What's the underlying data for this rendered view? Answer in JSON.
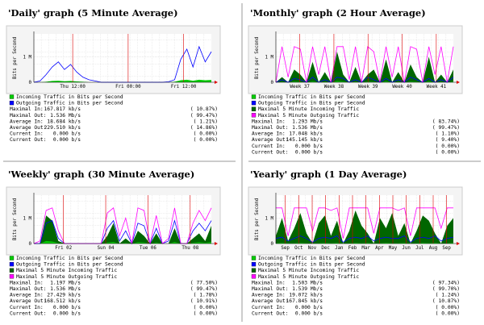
{
  "panels": [
    {
      "title": "'Daily' graph (5 Minute Average)",
      "y_axis_label": "Bits per Second",
      "ylim": [
        0,
        1.9
      ],
      "yticks": [
        0,
        {
          "value": 1,
          "label": "1 M"
        }
      ],
      "x_labels": [
        "Thu 12:00",
        "Fri 00:00",
        "Fri 12:00"
      ],
      "series": [
        {
          "name": "Incoming Traffic in Bits per Second",
          "color": "#00cc00",
          "style": "area",
          "values": [
            0,
            0,
            0.02,
            0.05,
            0.06,
            0.04,
            0.05,
            0.03,
            0.02,
            0,
            0,
            0,
            0,
            0,
            0,
            0,
            0,
            0,
            0,
            0,
            0,
            0,
            0,
            0.02,
            0.08,
            0.1,
            0.06,
            0.1,
            0.08,
            0.09
          ]
        },
        {
          "name": "Outgoing Traffic in Bits per Second",
          "color": "#0000ff",
          "style": "line",
          "values": [
            0,
            0.05,
            0.3,
            0.6,
            0.8,
            0.5,
            0.7,
            0.4,
            0.2,
            0.1,
            0.05,
            0,
            0,
            0,
            0,
            0,
            0,
            0,
            0,
            0,
            0,
            0,
            0.02,
            0.1,
            0.9,
            1.3,
            0.6,
            1.4,
            0.8,
            1.2
          ]
        }
      ],
      "stats": [
        [
          "Maximal In:",
          "167.817 kb/s",
          "( 10.87%)"
        ],
        [
          "Maximal Out:",
          "1.536 Mb/s",
          "( 99.47%)"
        ],
        [
          "Average In:",
          "18.684 kb/s",
          "( 1.21%)"
        ],
        [
          "Average Out:",
          "229.510 kb/s",
          "( 14.86%)"
        ],
        [
          "Current In:",
          "0.000 b/s",
          "( 0.00%)"
        ],
        [
          "Current Out:",
          "0.000 b/s",
          "( 0.00%)"
        ]
      ]
    },
    {
      "title": "'Monthly' graph (2 Hour Average)",
      "y_axis_label": "Bits per Second",
      "ylim": [
        0,
        1.9
      ],
      "yticks": [
        0,
        {
          "value": 1,
          "label": "1 M"
        }
      ],
      "x_labels": [
        "Week 37",
        "Week 38",
        "Week 39",
        "Week 40",
        "Week 41"
      ],
      "series": [
        {
          "name": "Incoming Traffic in Bits per Second",
          "color": "#00cc00",
          "style": "area",
          "values": [
            0,
            0.02,
            0,
            0.03,
            0.02,
            0,
            0.04,
            0,
            0.02,
            0,
            0.05,
            0.03,
            0,
            0.02,
            0,
            0.03,
            0.02,
            0,
            0.04,
            0,
            0.02,
            0,
            0.03,
            0.02,
            0,
            0.04,
            0,
            0.02,
            0,
            0.03
          ]
        },
        {
          "name": "Outgoing Traffic in Bits per Second",
          "color": "#0000ff",
          "style": "line",
          "values": [
            0,
            0.1,
            0,
            0.15,
            0.1,
            0,
            0.2,
            0,
            0.1,
            0,
            0.2,
            0.15,
            0,
            0.1,
            0,
            0.2,
            0.1,
            0,
            0.15,
            0,
            0.1,
            0,
            0.2,
            0.1,
            0,
            0.15,
            0,
            0.1,
            0,
            0.2
          ]
        },
        {
          "name": "Maximal 5 Minute Incoming Traffic",
          "color": "#006600",
          "style": "area",
          "values": [
            0,
            0.2,
            0,
            0.5,
            0.3,
            0,
            0.8,
            0,
            0.4,
            0,
            1.2,
            0.3,
            0,
            0.6,
            0,
            0.3,
            0.5,
            0,
            0.9,
            0,
            0.4,
            0,
            0.7,
            0.2,
            0,
            1.0,
            0,
            0.3,
            0,
            0.5
          ]
        },
        {
          "name": "Maximal 5 Minute Outgoing Traffic",
          "color": "#ff00ff",
          "style": "line",
          "values": [
            0,
            1.4,
            0.2,
            1.4,
            1.3,
            0,
            1.4,
            0.3,
            1.4,
            0,
            1.4,
            1.4,
            0.1,
            1.4,
            0,
            1.4,
            1.2,
            0,
            1.4,
            0.2,
            1.4,
            0,
            1.4,
            1.3,
            0,
            1.4,
            0.3,
            1.4,
            0,
            1.4
          ]
        }
      ],
      "stats": [
        [
          "Maximal In:",
          "1.293 Mb/s",
          "( 83.74%)"
        ],
        [
          "Maximal Out:",
          "1.536 Mb/s",
          "( 99.47%)"
        ],
        [
          "Average In:",
          "17.048 kb/s",
          "( 1.10%)"
        ],
        [
          "Average Out:",
          "145.145 kb/s",
          "( 9.40%)"
        ],
        [
          "Current In:",
          "0.000 b/s",
          "( 0.00%)"
        ],
        [
          "Current Out:",
          "0.000 b/s",
          "( 0.00%)"
        ]
      ]
    },
    {
      "title": "'Weekly' graph (30 Minute Average)",
      "y_axis_label": "Bits per Second",
      "ylim": [
        0,
        1.9
      ],
      "yticks": [
        0,
        {
          "value": 1,
          "label": "1 M"
        }
      ],
      "x_labels": [
        "Fri 02",
        "Sun 04",
        "Tue 06",
        "Thu 08"
      ],
      "series": [
        {
          "name": "Incoming Traffic in Bits per Second",
          "color": "#00cc00",
          "style": "area",
          "values": [
            0,
            0,
            0.1,
            0.08,
            0.02,
            0,
            0,
            0,
            0,
            0,
            0,
            0,
            0.04,
            0.06,
            0,
            0.03,
            0,
            0.05,
            0.04,
            0,
            0.04,
            0,
            0,
            0.06,
            0,
            0,
            0.03,
            0.05,
            0.03,
            0.06
          ]
        },
        {
          "name": "Outgoing Traffic in Bits per Second",
          "color": "#0000ff",
          "style": "line",
          "values": [
            0,
            0,
            0.8,
            0.9,
            0.2,
            0,
            0,
            0,
            0,
            0,
            0,
            0,
            0.6,
            0.9,
            0.1,
            0.5,
            0,
            0.8,
            0.7,
            0,
            0.6,
            0,
            0.1,
            0.9,
            0,
            0,
            0.5,
            0.8,
            0.5,
            0.9
          ]
        },
        {
          "name": "Maximal 5 Minute Incoming Traffic",
          "color": "#006600",
          "style": "area",
          "values": [
            0,
            0,
            1.1,
            0.9,
            0.1,
            0,
            0,
            0,
            0,
            0,
            0,
            0,
            0.3,
            0.8,
            0,
            0.2,
            0,
            0.5,
            0.3,
            0,
            0.4,
            0,
            0,
            0.6,
            0,
            0,
            0.2,
            0.4,
            0.1,
            0.7
          ]
        },
        {
          "name": "Maximal 5 Minute Outgoing Traffic",
          "color": "#ff00ff",
          "style": "line",
          "values": [
            0,
            0.1,
            1.3,
            1.4,
            0.5,
            0,
            0,
            0,
            0,
            0,
            0,
            0,
            1.2,
            1.4,
            0.3,
            1.0,
            0,
            1.4,
            1.3,
            0,
            1.1,
            0,
            0.2,
            1.4,
            0,
            0,
            0.8,
            1.3,
            0.9,
            1.4
          ]
        }
      ],
      "stats": [
        [
          "Maximal In:",
          "1.197 Mb/s",
          "( 77.50%)"
        ],
        [
          "Maximal Out:",
          "1.536 Mb/s",
          "( 99.47%)"
        ],
        [
          "Average In:",
          "27.429 kb/s",
          "( 1.78%)"
        ],
        [
          "Average Out:",
          "168.512 kb/s",
          "( 10.91%)"
        ],
        [
          "Current In:",
          "0.000 b/s",
          "( 0.00%)"
        ],
        [
          "Current Out:",
          "0.000 b/s",
          "( 0.00%)"
        ]
      ]
    },
    {
      "title": "'Yearly' graph (1 Day Average)",
      "y_axis_label": "Bits per Second",
      "ylim": [
        0,
        1.9
      ],
      "yticks": [
        0,
        {
          "value": 1,
          "label": "1 M"
        }
      ],
      "x_labels": [
        "Sep",
        "Oct",
        "Nov",
        "Dec",
        "Jan",
        "Feb",
        "Mar",
        "Apr",
        "May",
        "Jun",
        "Jul",
        "Aug",
        "Sep"
      ],
      "series": [
        {
          "name": "Incoming Traffic in Bits per Second",
          "color": "#00cc00",
          "style": "area",
          "values": [
            0.02,
            0.03,
            0.02,
            0.02,
            0.03,
            0.02,
            0.01,
            0.02,
            0.03,
            0.02,
            0.03,
            0.01,
            0.02,
            0.03,
            0.02,
            0.03,
            0.01,
            0.02,
            0.03,
            0.02,
            0.02,
            0.03,
            0.01,
            0.02,
            0.03,
            0.02,
            0.03,
            0.01,
            0.02,
            0.03
          ]
        },
        {
          "name": "Outgoing Traffic in Bits per Second",
          "color": "#0000ff",
          "style": "line",
          "values": [
            0.2,
            0.25,
            0.1,
            0.2,
            0.3,
            0.2,
            0.05,
            0.2,
            0.25,
            0.2,
            0.3,
            0.05,
            0.2,
            0.25,
            0.2,
            0.3,
            0.1,
            0.2,
            0.25,
            0.2,
            0.2,
            0.3,
            0.05,
            0.2,
            0.25,
            0.2,
            0.3,
            0.1,
            0.2,
            0.25
          ]
        },
        {
          "name": "Maximal 5 Minute Incoming Traffic",
          "color": "#006600",
          "style": "area",
          "values": [
            0.3,
            1.0,
            0.1,
            0.6,
            1.2,
            0.4,
            0,
            0.8,
            1.1,
            0.3,
            0.9,
            0,
            0.5,
            1.3,
            0.7,
            0.4,
            0,
            1.0,
            0.6,
            1.2,
            0.3,
            0.8,
            0,
            0.5,
            1.1,
            0.9,
            0.4,
            0,
            0.7,
            1.0
          ]
        },
        {
          "name": "Maximal 5 Minute Outgoing Traffic",
          "color": "#ff00ff",
          "style": "line",
          "values": [
            1.4,
            1.4,
            0.3,
            1.4,
            1.4,
            1.4,
            0.5,
            1.4,
            1.4,
            1.3,
            1.4,
            0.2,
            1.4,
            1.4,
            1.4,
            1.4,
            0.4,
            1.4,
            1.4,
            1.4,
            1.3,
            1.4,
            0.3,
            1.4,
            1.4,
            1.4,
            1.4,
            0.6,
            1.4,
            1.4
          ]
        }
      ],
      "stats": [
        [
          "Maximal In:",
          "1.503 Mb/s",
          "( 97.34%)"
        ],
        [
          "Maximal Out:",
          "1.539 Mb/s",
          "( 99.70%)"
        ],
        [
          "Average In:",
          "19.072 kb/s",
          "( 1.24%)"
        ],
        [
          "Average Out:",
          "167.845 kb/s",
          "( 10.87%)"
        ],
        [
          "Current In:",
          "0.000 b/s",
          "( 0.00%)"
        ],
        [
          "Current Out:",
          "0.000 b/s",
          "( 0.00%)"
        ]
      ]
    }
  ]
}
